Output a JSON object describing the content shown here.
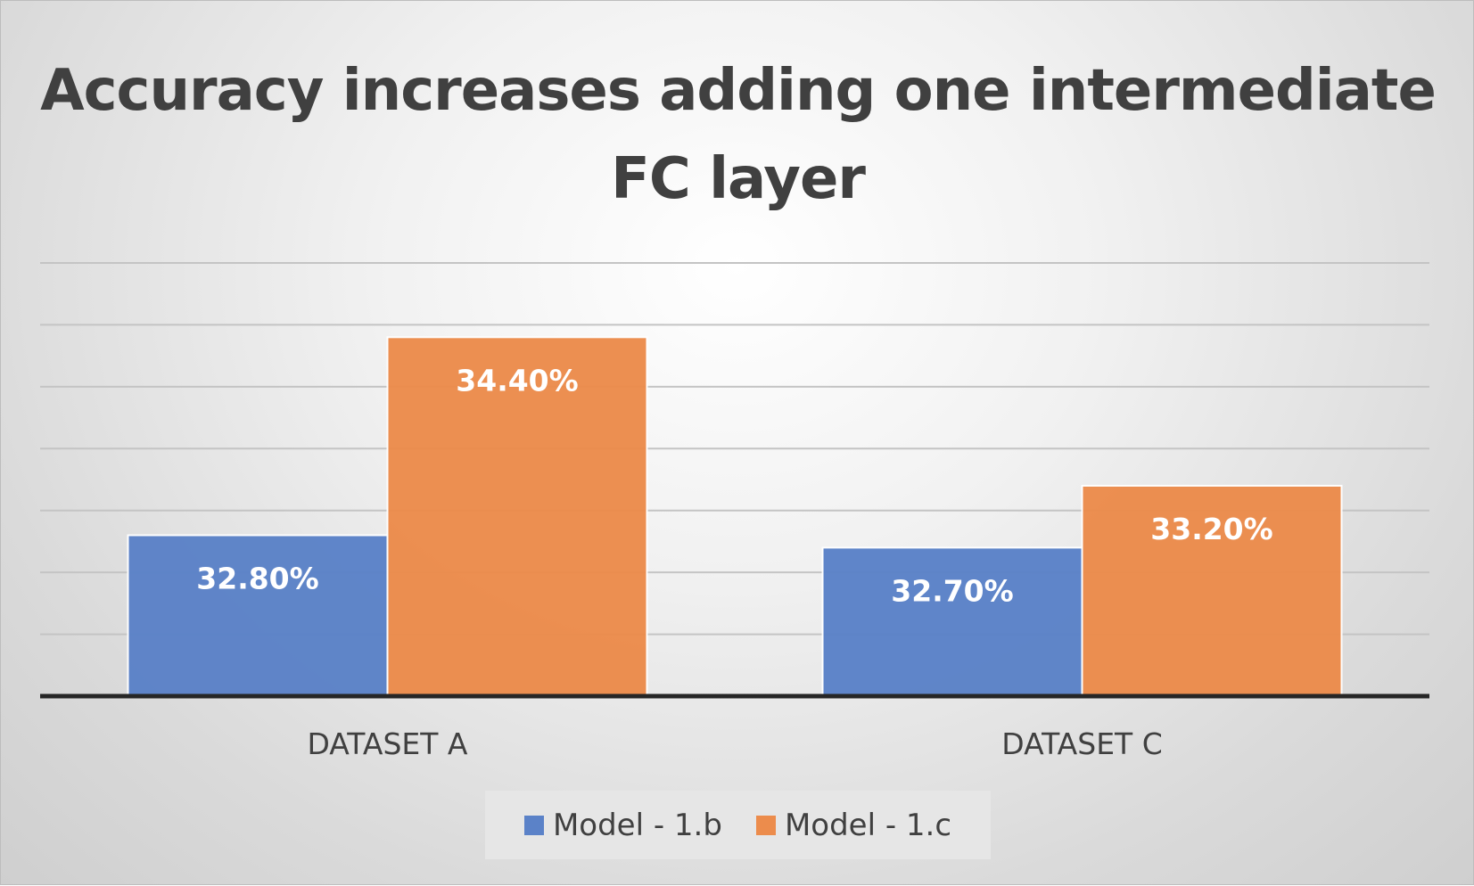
{
  "colors": {
    "series_1": "#5b82c8",
    "series_2": "#ec8c4c",
    "gridline": "#c4c4c4",
    "axis": "#262626",
    "label_text": "#404040",
    "data_label_text": "#ffffff"
  },
  "chart_data": {
    "type": "bar",
    "title": "Accuracy increases adding one intermediate FC layer",
    "xlabel": "",
    "ylabel": "",
    "categories": [
      "DATASET A",
      "DATASET C"
    ],
    "series": [
      {
        "name": "Model - 1.b",
        "values": [
          32.8,
          32.7
        ],
        "labels": [
          "32.80%",
          "32.70%"
        ]
      },
      {
        "name": "Model - 1.c",
        "values": [
          34.4,
          33.2
        ],
        "labels": [
          "34.40%",
          "33.20%"
        ]
      }
    ],
    "ylim": [
      31.5,
      35.0
    ],
    "y_gridline_step": 0.5,
    "grid": true,
    "y_axis_labels_shown": false,
    "legend": "bottom"
  }
}
